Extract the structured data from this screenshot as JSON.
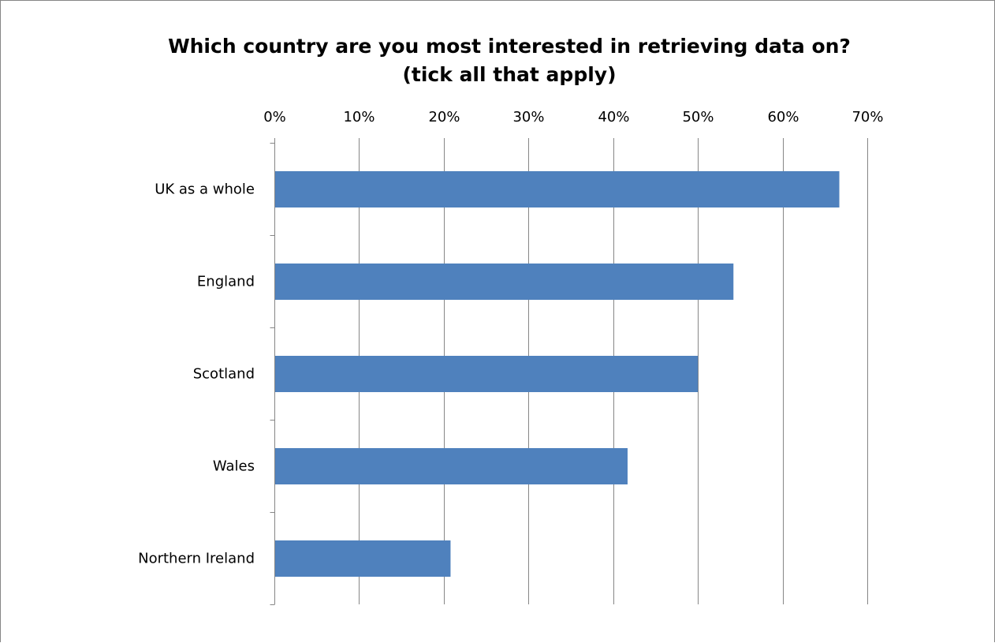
{
  "chart_data": {
    "type": "bar",
    "orientation": "horizontal",
    "title": "Which country are you most interested in retrieving data on? (tick all that apply)",
    "title_lines": [
      "Which country are you most interested in retrieving data on?",
      "(tick all that apply)"
    ],
    "categories": [
      "UK as a whole",
      "England",
      "Scotland",
      "Wales",
      "Northern Ireland"
    ],
    "values": [
      0.667,
      0.542,
      0.5,
      0.417,
      0.208
    ],
    "x_axis": {
      "ticks": [
        0,
        0.1,
        0.2,
        0.3,
        0.4,
        0.5,
        0.6,
        0.7
      ],
      "tick_labels": [
        "0%",
        "10%",
        "20%",
        "30%",
        "40%",
        "50%",
        "60%",
        "70%"
      ],
      "range": [
        0,
        0.7
      ],
      "position": "top"
    },
    "xlabel": "",
    "ylabel": "",
    "grid": true,
    "legend": "none",
    "colors": {
      "bar": "#4F81BD",
      "grid": "#868686",
      "border": "#868686"
    }
  }
}
